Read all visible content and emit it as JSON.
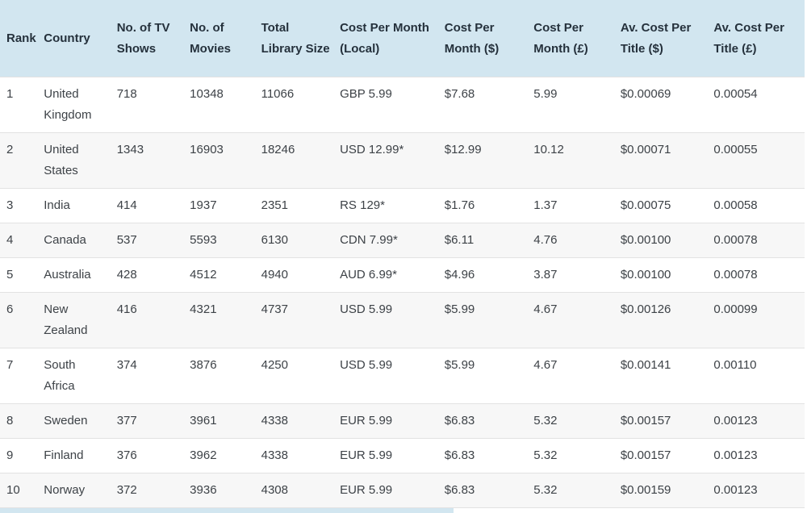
{
  "colors": {
    "header_bg": "#d2e6f0",
    "header_text": "#25313c",
    "body_text": "#3d4247",
    "row_alt_bg": "#f7f7f7",
    "row_border": "#e2e2e2",
    "page_bg": "#ffffff"
  },
  "chart_data": {
    "type": "table",
    "title": "",
    "columns": [
      {
        "key": "rank",
        "label": "Rank"
      },
      {
        "key": "country",
        "label": "Country"
      },
      {
        "key": "tv_shows",
        "label": "No. of TV Shows"
      },
      {
        "key": "movies",
        "label": "No. of Movies"
      },
      {
        "key": "library_size",
        "label": "Total Library Size"
      },
      {
        "key": "cost_local",
        "label": "Cost Per Month (Local)"
      },
      {
        "key": "cost_usd",
        "label": "Cost Per Month ($)"
      },
      {
        "key": "cost_gbp",
        "label": "Cost Per Month (£)"
      },
      {
        "key": "av_cost_usd",
        "label": "Av. Cost Per Title ($)"
      },
      {
        "key": "av_cost_gbp",
        "label": "Av. Cost Per Title (£)"
      }
    ],
    "rows": [
      {
        "rank": "1",
        "country": "United Kingdom",
        "tv_shows": "718",
        "movies": "10348",
        "library_size": "11066",
        "cost_local": "GBP 5.99",
        "cost_usd": "$7.68",
        "cost_gbp": "5.99",
        "av_cost_usd": "$0.00069",
        "av_cost_gbp": "0.00054"
      },
      {
        "rank": "2",
        "country": "United States",
        "tv_shows": "1343",
        "movies": "16903",
        "library_size": "18246",
        "cost_local": "USD 12.99*",
        "cost_usd": "$12.99",
        "cost_gbp": "10.12",
        "av_cost_usd": "$0.00071",
        "av_cost_gbp": "0.00055"
      },
      {
        "rank": "3",
        "country": "India",
        "tv_shows": "414",
        "movies": "1937",
        "library_size": "2351",
        "cost_local": "RS 129*",
        "cost_usd": "$1.76",
        "cost_gbp": "1.37",
        "av_cost_usd": "$0.00075",
        "av_cost_gbp": "0.00058"
      },
      {
        "rank": "4",
        "country": "Canada",
        "tv_shows": "537",
        "movies": "5593",
        "library_size": "6130",
        "cost_local": "CDN 7.99*",
        "cost_usd": "$6.11",
        "cost_gbp": "4.76",
        "av_cost_usd": "$0.00100",
        "av_cost_gbp": "0.00078"
      },
      {
        "rank": "5",
        "country": "Australia",
        "tv_shows": "428",
        "movies": "4512",
        "library_size": "4940",
        "cost_local": "AUD 6.99*",
        "cost_usd": "$4.96",
        "cost_gbp": "3.87",
        "av_cost_usd": "$0.00100",
        "av_cost_gbp": "0.00078"
      },
      {
        "rank": "6",
        "country": "New Zealand",
        "tv_shows": "416",
        "movies": "4321",
        "library_size": "4737",
        "cost_local": "USD 5.99",
        "cost_usd": "$5.99",
        "cost_gbp": "4.67",
        "av_cost_usd": "$0.00126",
        "av_cost_gbp": "0.00099"
      },
      {
        "rank": "7",
        "country": "South Africa",
        "tv_shows": "374",
        "movies": "3876",
        "library_size": "4250",
        "cost_local": "USD 5.99",
        "cost_usd": "$5.99",
        "cost_gbp": "4.67",
        "av_cost_usd": "$0.00141",
        "av_cost_gbp": "0.00110"
      },
      {
        "rank": "8",
        "country": "Sweden",
        "tv_shows": "377",
        "movies": "3961",
        "library_size": "4338",
        "cost_local": "EUR 5.99",
        "cost_usd": "$6.83",
        "cost_gbp": "5.32",
        "av_cost_usd": "$0.00157",
        "av_cost_gbp": "0.00123"
      },
      {
        "rank": "9",
        "country": "Finland",
        "tv_shows": "376",
        "movies": "3962",
        "library_size": "4338",
        "cost_local": "EUR 5.99",
        "cost_usd": "$6.83",
        "cost_gbp": "5.32",
        "av_cost_usd": "$0.00157",
        "av_cost_gbp": "0.00123"
      },
      {
        "rank": "10",
        "country": "Norway",
        "tv_shows": "372",
        "movies": "3936",
        "library_size": "4308",
        "cost_local": "EUR 5.99",
        "cost_usd": "$6.83",
        "cost_gbp": "5.32",
        "av_cost_usd": "$0.00159",
        "av_cost_gbp": "0.00123"
      }
    ]
  }
}
